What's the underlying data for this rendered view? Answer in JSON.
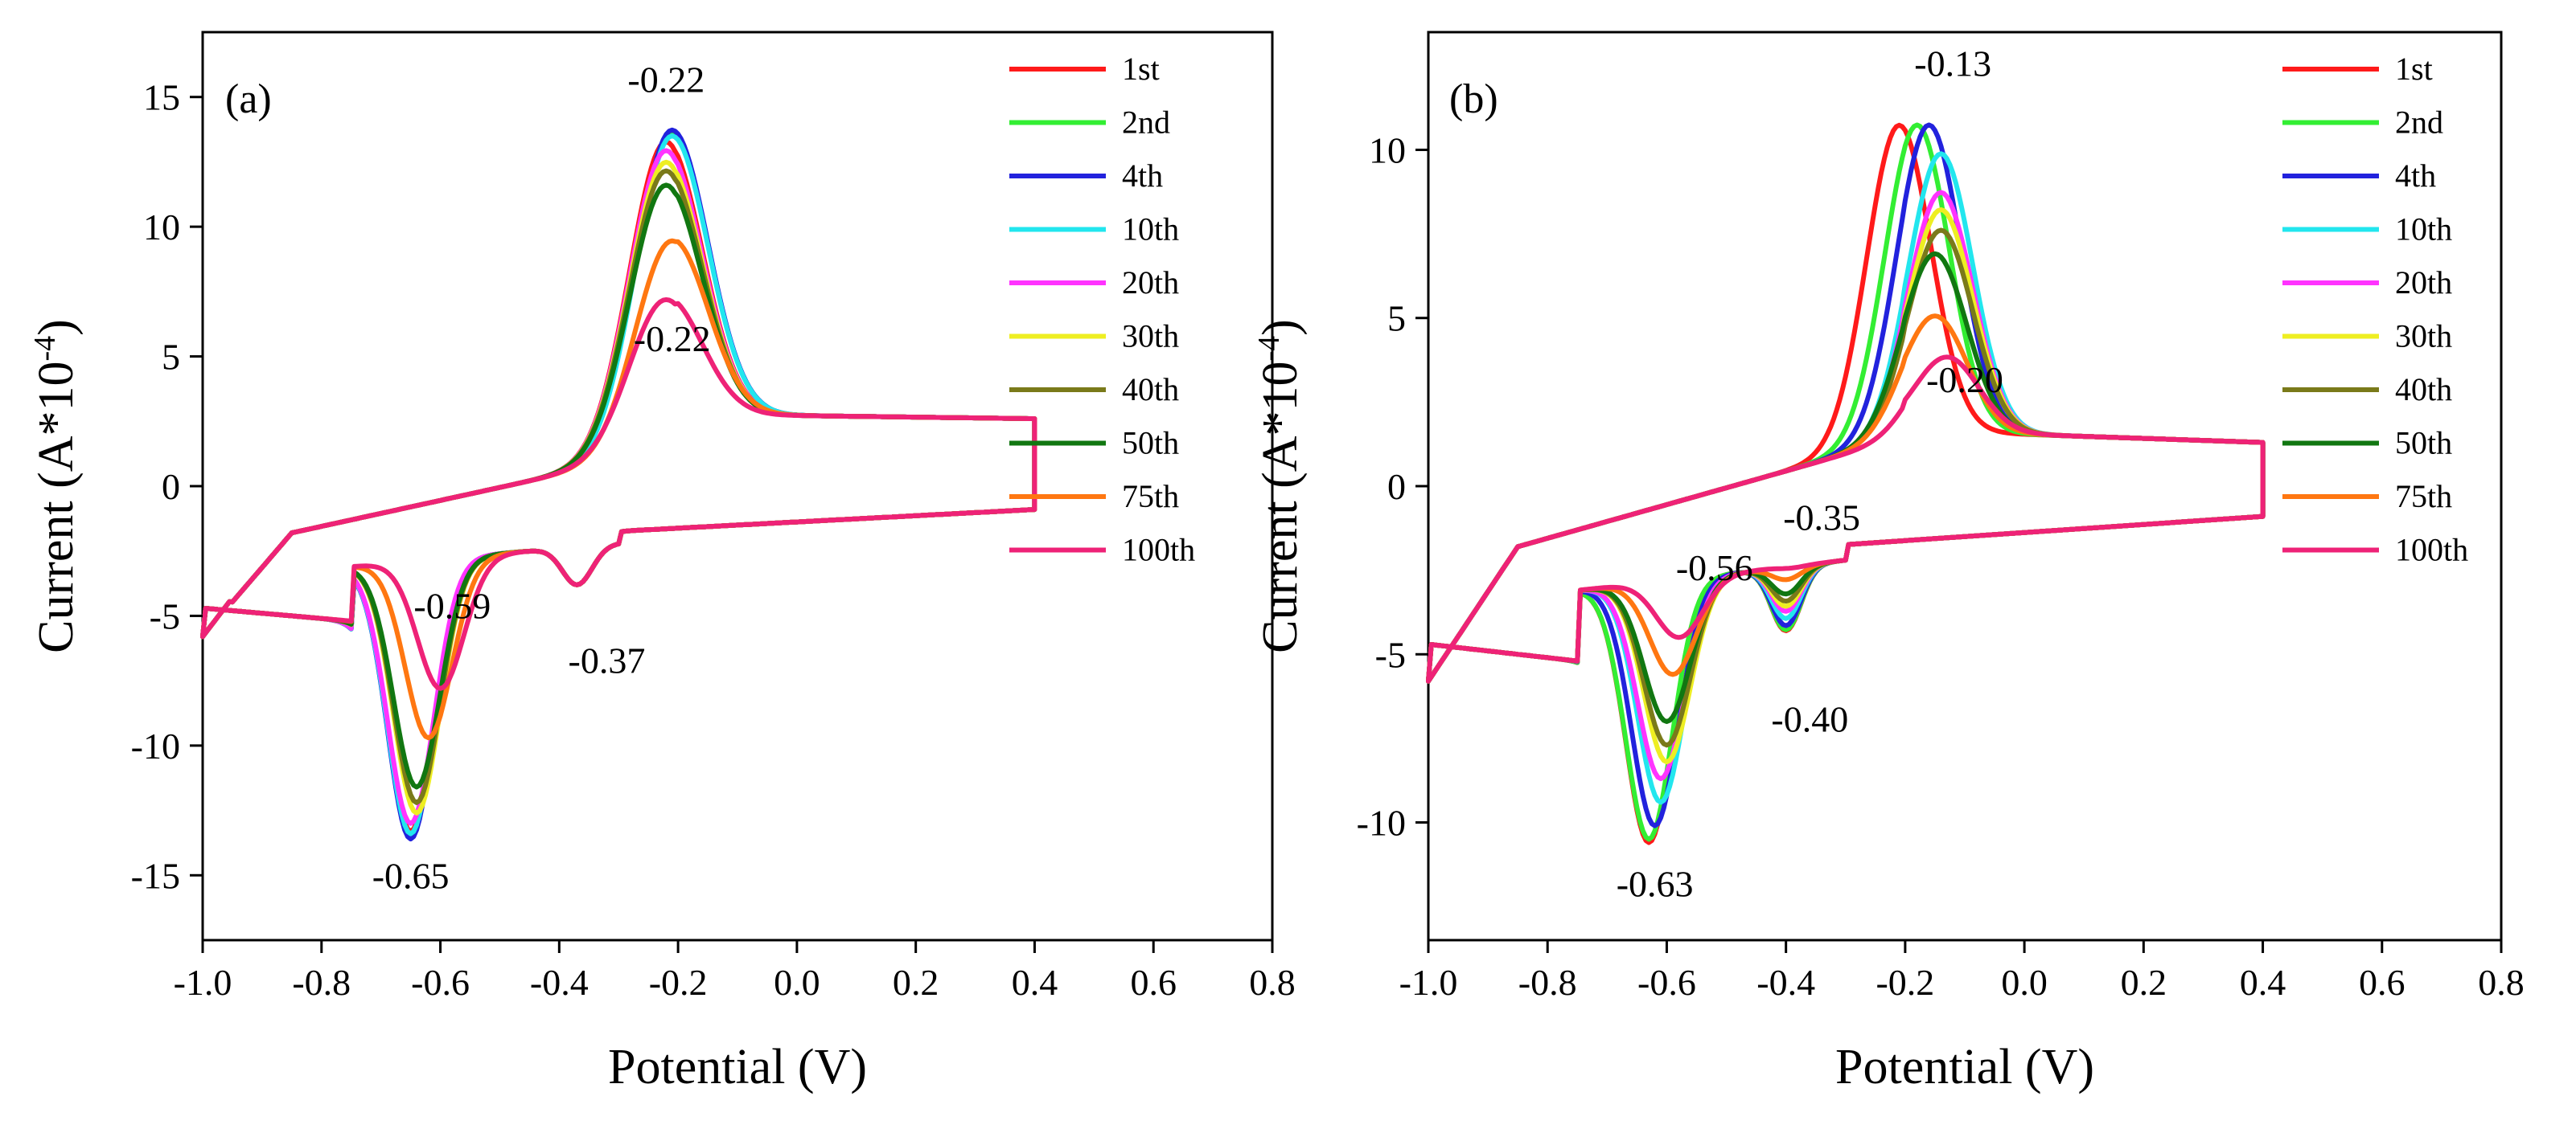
{
  "figure": {
    "y_axis_label_prefix": "Current (A*10",
    "y_axis_label_exponent": "-4",
    "y_axis_label_suffix": ")"
  },
  "chart_data": [
    {
      "type": "line",
      "panel_label": "(a)",
      "xlabel": "Potential (V)",
      "ylabel": "Current (A*10^-4)",
      "xlim": [
        -1.0,
        0.8
      ],
      "ylim": [
        -17.5,
        17.5
      ],
      "xticks": [
        -1.0,
        -0.8,
        -0.6,
        -0.4,
        -0.2,
        0.0,
        0.2,
        0.4,
        0.6,
        0.8
      ],
      "xtick_labels": [
        "-1.0",
        "-0.8",
        "-0.6",
        "-0.4",
        "-0.2",
        "0.0",
        "0.2",
        "0.4",
        "0.6",
        "0.8"
      ],
      "yticks": [
        15,
        10,
        5,
        0,
        -5,
        -10,
        -15
      ],
      "ytick_labels": [
        "15",
        "10",
        "5",
        "0",
        "-5",
        "-10",
        "-15"
      ],
      "legend_position": "top-right",
      "series": [
        {
          "name": "1st",
          "color": "#ff1a1a",
          "anodic_peak_x": -0.22,
          "anodic_peak_y": 13.3,
          "cathodic_peak_x": -0.65,
          "cathodic_peak_y": -13.3
        },
        {
          "name": "2nd",
          "color": "#33ee33",
          "anodic_peak_x": -0.21,
          "anodic_peak_y": 13.6,
          "cathodic_peak_x": -0.65,
          "cathodic_peak_y": -13.5
        },
        {
          "name": "4th",
          "color": "#2222dd",
          "anodic_peak_x": -0.21,
          "anodic_peak_y": 13.7,
          "cathodic_peak_x": -0.65,
          "cathodic_peak_y": -13.6
        },
        {
          "name": "10th",
          "color": "#22e6ee",
          "anodic_peak_x": -0.21,
          "anodic_peak_y": 13.5,
          "cathodic_peak_x": -0.65,
          "cathodic_peak_y": -13.4
        },
        {
          "name": "20th",
          "color": "#ff33ff",
          "anodic_peak_x": -0.22,
          "anodic_peak_y": 13.0,
          "cathodic_peak_x": -0.65,
          "cathodic_peak_y": -13.0
        },
        {
          "name": "30th",
          "color": "#eeee22",
          "anodic_peak_x": -0.22,
          "anodic_peak_y": 12.6,
          "cathodic_peak_x": -0.64,
          "cathodic_peak_y": -12.6
        },
        {
          "name": "40th",
          "color": "#7a7a1a",
          "anodic_peak_x": -0.22,
          "anodic_peak_y": 12.3,
          "cathodic_peak_x": -0.64,
          "cathodic_peak_y": -12.2
        },
        {
          "name": "50th",
          "color": "#117711",
          "anodic_peak_x": -0.22,
          "anodic_peak_y": 11.8,
          "cathodic_peak_x": -0.64,
          "cathodic_peak_y": -11.6
        },
        {
          "name": "75th",
          "color": "#ff7711",
          "anodic_peak_x": -0.21,
          "anodic_peak_y": 9.8,
          "cathodic_peak_x": -0.62,
          "cathodic_peak_y": -9.7
        },
        {
          "name": "100th",
          "color": "#ee2277",
          "anodic_peak_x": -0.22,
          "anodic_peak_y": 7.6,
          "cathodic_peak_x": -0.6,
          "cathodic_peak_y": -7.8
        }
      ],
      "annotations": [
        {
          "text": "-0.22",
          "x": -0.22,
          "y": 15.2
        },
        {
          "text": "-0.22",
          "x": -0.21,
          "y": 5.2
        },
        {
          "text": "-0.59",
          "x": -0.58,
          "y": -5.1
        },
        {
          "text": "-0.37",
          "x": -0.32,
          "y": -7.2
        },
        {
          "text": "-0.65",
          "x": -0.65,
          "y": -15.5
        }
      ]
    },
    {
      "type": "line",
      "panel_label": "(b)",
      "xlabel": "Potential (V)",
      "ylabel": "Current (A*10^-4)",
      "xlim": [
        -1.0,
        0.8
      ],
      "ylim": [
        -13.5,
        13.5
      ],
      "xticks": [
        -1.0,
        -0.8,
        -0.6,
        -0.4,
        -0.2,
        0.0,
        0.2,
        0.4,
        0.6,
        0.8
      ],
      "xtick_labels": [
        "-1.0",
        "-0.8",
        "-0.6",
        "-0.4",
        "-0.2",
        "0.0",
        "0.2",
        "0.4",
        "0.6",
        "0.8"
      ],
      "yticks": [
        10,
        5,
        0,
        -5,
        -10
      ],
      "ytick_labels": [
        "10",
        "5",
        "0",
        "-5",
        "-10"
      ],
      "legend_position": "top-right",
      "series": [
        {
          "name": "1st",
          "color": "#ff1a1a",
          "anodic_peak_x": -0.21,
          "anodic_peak_y": 11.0,
          "cathodic_peak_x": -0.63,
          "cathodic_peak_y": -10.6
        },
        {
          "name": "2nd",
          "color": "#33ee33",
          "anodic_peak_x": -0.18,
          "anodic_peak_y": 11.0,
          "cathodic_peak_x": -0.63,
          "cathodic_peak_y": -10.5
        },
        {
          "name": "4th",
          "color": "#2222dd",
          "anodic_peak_x": -0.16,
          "anodic_peak_y": 11.0,
          "cathodic_peak_x": -0.62,
          "cathodic_peak_y": -10.1
        },
        {
          "name": "10th",
          "color": "#22e6ee",
          "anodic_peak_x": -0.14,
          "anodic_peak_y": 10.2,
          "cathodic_peak_x": -0.61,
          "cathodic_peak_y": -9.4
        },
        {
          "name": "20th",
          "color": "#ff33ff",
          "anodic_peak_x": -0.14,
          "anodic_peak_y": 9.1,
          "cathodic_peak_x": -0.61,
          "cathodic_peak_y": -8.7
        },
        {
          "name": "30th",
          "color": "#eeee22",
          "anodic_peak_x": -0.14,
          "anodic_peak_y": 8.6,
          "cathodic_peak_x": -0.6,
          "cathodic_peak_y": -8.2
        },
        {
          "name": "40th",
          "color": "#7a7a1a",
          "anodic_peak_x": -0.14,
          "anodic_peak_y": 8.0,
          "cathodic_peak_x": -0.6,
          "cathodic_peak_y": -7.7
        },
        {
          "name": "50th",
          "color": "#117711",
          "anodic_peak_x": -0.15,
          "anodic_peak_y": 7.3,
          "cathodic_peak_x": -0.6,
          "cathodic_peak_y": -7.0
        },
        {
          "name": "75th",
          "color": "#ff7711",
          "anodic_peak_x": -0.15,
          "anodic_peak_y": 5.4,
          "cathodic_peak_x": -0.59,
          "cathodic_peak_y": -5.6
        },
        {
          "name": "100th",
          "color": "#ee2277",
          "anodic_peak_x": -0.13,
          "anodic_peak_y": 4.1,
          "cathodic_peak_x": -0.58,
          "cathodic_peak_y": -4.5
        }
      ],
      "annotations": [
        {
          "text": "-0.13",
          "x": -0.12,
          "y": 12.2
        },
        {
          "text": "-0.20",
          "x": -0.1,
          "y": 2.8
        },
        {
          "text": "-0.56",
          "x": -0.52,
          "y": -2.8
        },
        {
          "text": "-0.35",
          "x": -0.34,
          "y": -1.3
        },
        {
          "text": "-0.40",
          "x": -0.36,
          "y": -7.3
        },
        {
          "text": "-0.63",
          "x": -0.62,
          "y": -12.2
        }
      ]
    }
  ]
}
